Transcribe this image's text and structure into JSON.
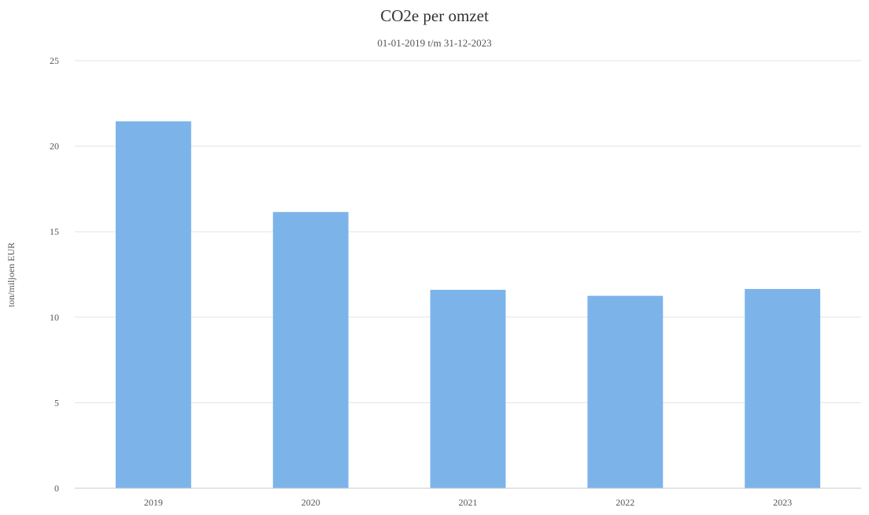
{
  "chart_data": {
    "type": "bar",
    "title": "CO2e per omzet",
    "subtitle": "01-01-2019 t/m 31-12-2023",
    "xlabel": "",
    "ylabel": "ton/miljoen EUR",
    "categories": [
      "2019",
      "2020",
      "2021",
      "2022",
      "2023"
    ],
    "series": [
      {
        "values": [
          21.45,
          16.15,
          11.6,
          11.25,
          11.65
        ]
      }
    ],
    "ylim": [
      0,
      25
    ],
    "yticks": [
      "0",
      "5",
      "10",
      "15",
      "20",
      "25"
    ],
    "grid": true,
    "legend": "none",
    "colors": {
      "bar": "#7cb4ea",
      "gridline": "#e3e3e3"
    }
  }
}
